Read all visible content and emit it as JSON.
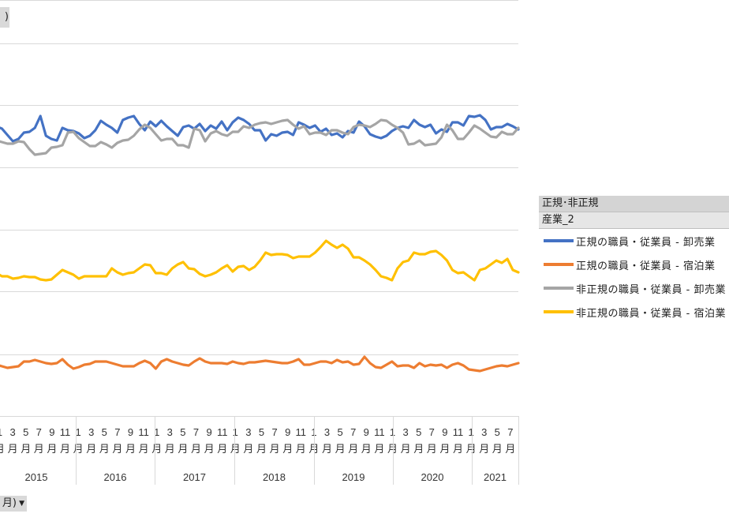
{
  "ui": {
    "top_button_fragment": ")",
    "bottom_button_fragment": "月)",
    "bottom_button_arrow": "▼"
  },
  "legend": {
    "header": "正規･非正規",
    "field": "産業_2",
    "items": [
      {
        "label": "正規の職員・従業員 - 卸売業",
        "color": "#4472c4"
      },
      {
        "label": "正規の職員・従業員 - 宿泊業",
        "color": "#ed7d31"
      },
      {
        "label": "非正規の職員・従業員 - 卸売業",
        "color": "#a5a5a5"
      },
      {
        "label": "非正規の職員・従業員 - 宿泊業",
        "color": "#ffc000"
      }
    ]
  },
  "chart_data": {
    "type": "line",
    "x_categories": {
      "years": [
        {
          "label": "2015",
          "months": [
            "1",
            "3",
            "5",
            "7",
            "9",
            "11"
          ]
        },
        {
          "label": "2016",
          "months": [
            "1",
            "3",
            "5",
            "7",
            "9",
            "11"
          ]
        },
        {
          "label": "2017",
          "months": [
            "1",
            "3",
            "5",
            "7",
            "9",
            "11"
          ]
        },
        {
          "label": "2018",
          "months": [
            "1",
            "3",
            "5",
            "7",
            "9",
            "11"
          ]
        },
        {
          "label": "2019",
          "months": [
            "1",
            "3",
            "5",
            "7",
            "9",
            "11"
          ]
        },
        {
          "label": "2020",
          "months": [
            "1",
            "3",
            "5",
            "7",
            "9",
            "11"
          ]
        },
        {
          "label": "2021",
          "months": [
            "1",
            "3",
            "5",
            "7"
          ]
        }
      ],
      "month_suffix": "月"
    },
    "grid": true,
    "series": [
      {
        "name": "正規の職員・従業員 - 卸売業",
        "color": "#4472c4",
        "values": [
          160,
          163,
          171,
          179,
          176,
          168,
          167,
          162,
          147,
          172,
          176,
          178,
          162,
          165,
          166,
          169,
          175,
          172,
          165,
          153,
          158,
          162,
          168,
          152,
          149,
          147,
          157,
          165,
          154,
          160,
          153,
          160,
          166,
          172,
          161,
          159,
          163,
          157,
          166,
          159,
          163,
          154,
          165,
          155,
          149,
          152,
          157,
          165,
          165,
          178,
          170,
          172,
          168,
          167,
          171,
          155,
          158,
          162,
          159,
          167,
          163,
          171,
          169,
          174,
          166,
          168,
          154,
          160,
          170,
          173,
          175,
          172,
          166,
          162,
          160,
          162,
          152,
          158,
          161,
          158,
          169,
          164,
          167,
          155,
          155,
          159,
          147,
          148,
          146,
          152,
          164,
          161,
          161,
          157,
          160,
          164
        ]
      },
      {
        "name": "正規の職員・従業員 - 宿泊業",
        "color": "#ed7d31",
        "values": [
          462,
          464,
          466,
          465,
          464,
          458,
          458,
          456,
          458,
          460,
          461,
          460,
          455,
          462,
          467,
          465,
          462,
          461,
          458,
          458,
          458,
          460,
          462,
          464,
          464,
          464,
          460,
          457,
          460,
          467,
          458,
          455,
          458,
          460,
          462,
          463,
          458,
          454,
          458,
          460,
          460,
          460,
          461,
          458,
          460,
          461,
          459,
          459,
          458,
          457,
          458,
          459,
          460,
          460,
          458,
          455,
          462,
          462,
          460,
          458,
          458,
          460,
          456,
          459,
          458,
          462,
          461,
          452,
          460,
          465,
          466,
          462,
          458,
          464,
          463,
          463,
          466,
          460,
          464,
          462,
          463,
          462,
          466,
          462,
          460,
          463,
          468,
          469,
          470,
          468,
          466,
          464,
          463,
          464,
          462,
          460
        ]
      },
      {
        "name": "非正規の職員・従業員 - 卸売業",
        "color": "#a5a5a5",
        "values": [
          178,
          180,
          182,
          182,
          179,
          180,
          189,
          196,
          195,
          194,
          187,
          186,
          184,
          168,
          167,
          175,
          180,
          185,
          185,
          180,
          183,
          187,
          181,
          178,
          177,
          172,
          164,
          158,
          162,
          170,
          178,
          176,
          176,
          184,
          184,
          187,
          163,
          165,
          179,
          169,
          166,
          170,
          172,
          167,
          167,
          160,
          162,
          158,
          156,
          155,
          157,
          155,
          153,
          152,
          158,
          163,
          160,
          170,
          168,
          168,
          171,
          165,
          165,
          168,
          170,
          161,
          158,
          159,
          161,
          157,
          152,
          153,
          158,
          162,
          168,
          183,
          182,
          178,
          184,
          183,
          182,
          174,
          158,
          165,
          176,
          176,
          168,
          159,
          163,
          168,
          173,
          174,
          167,
          170,
          170,
          162
        ]
      },
      {
        "name": "非正規の職員・従業員 - 宿泊業",
        "color": "#ffc000",
        "values": [
          346,
          350,
          350,
          353,
          352,
          350,
          351,
          351,
          354,
          355,
          354,
          348,
          342,
          345,
          348,
          353,
          350,
          350,
          350,
          350,
          350,
          340,
          345,
          348,
          346,
          345,
          340,
          335,
          336,
          346,
          346,
          348,
          340,
          335,
          332,
          340,
          341,
          347,
          350,
          348,
          345,
          340,
          336,
          344,
          338,
          337,
          342,
          338,
          330,
          320,
          323,
          322,
          322,
          323,
          327,
          325,
          325,
          325,
          320,
          313,
          305,
          310,
          314,
          310,
          315,
          326,
          326,
          330,
          335,
          342,
          350,
          352,
          355,
          340,
          332,
          330,
          320,
          322,
          322,
          319,
          318,
          323,
          330,
          342,
          346,
          345,
          350,
          355,
          342,
          340,
          335,
          330,
          333,
          328,
          342,
          345
        ]
      }
    ]
  }
}
